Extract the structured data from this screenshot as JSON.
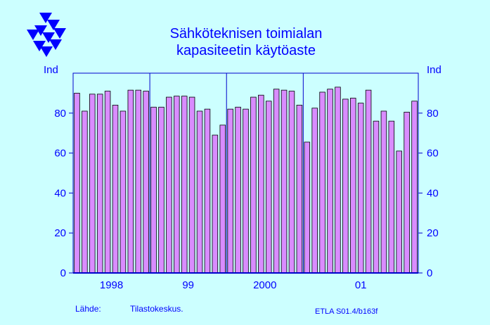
{
  "colors": {
    "background": "#ccffff",
    "plot_background": "#ccffff",
    "bar_fill": "#d98cff",
    "bar_stroke": "#000000",
    "text": "#0000ff",
    "axis": "#0000cc",
    "logo": "#0000ff"
  },
  "logo": {
    "icon": "etla-triangles-logo"
  },
  "source": {
    "label": "Lähde:",
    "text": "Tilastokeskus."
  },
  "footer_code": "ETLA S01.4/b163f",
  "chart_data": {
    "type": "bar",
    "title": [
      "Sähköteknisen toimialan",
      "kapasiteetin käytöaste"
    ],
    "ylabel_left": "Ind",
    "ylabel_right": "Ind",
    "ylim": [
      0,
      100
    ],
    "yticks": [
      0,
      20,
      40,
      60,
      80
    ],
    "grid": "vertical lines at year boundaries",
    "year_labels": [
      {
        "label": "1998",
        "start_index": 0
      },
      {
        "label": "99",
        "start_index": 10
      },
      {
        "label": "2000",
        "start_index": 20
      },
      {
        "label": "01",
        "start_index": 30
      }
    ],
    "values": [
      90,
      81,
      89.5,
      89.5,
      91,
      84,
      81,
      91.5,
      91.5,
      91,
      83,
      83,
      88,
      88.5,
      88.5,
      88,
      81,
      82,
      69,
      74,
      82,
      83,
      82,
      88,
      89,
      86,
      92,
      91.5,
      91,
      84,
      65.5,
      82.5,
      90.5,
      92,
      93,
      87,
      87.5,
      85,
      91.5,
      76,
      81,
      76,
      61,
      80.5,
      86
    ]
  }
}
